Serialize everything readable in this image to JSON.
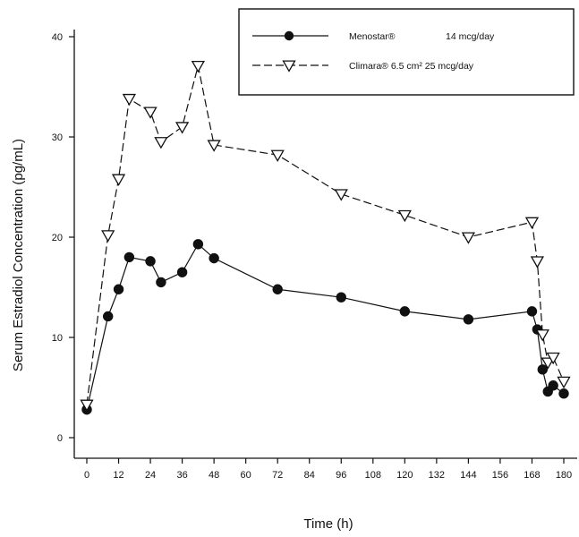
{
  "chart_data": {
    "type": "line",
    "title": "",
    "xlabel": "Time (h)",
    "ylabel": "Serum Estradiol Concentration (pg/mL)",
    "xlim": [
      0,
      180
    ],
    "ylim": [
      0,
      40
    ],
    "xticks": [
      0,
      12,
      24,
      36,
      48,
      60,
      72,
      84,
      96,
      108,
      120,
      132,
      144,
      156,
      168,
      180
    ],
    "xtick_labels": [
      "0",
      "12",
      "24",
      "36",
      "48",
      "60",
      "72",
      "84",
      "96",
      "108",
      "120",
      "132",
      "144",
      "156",
      "168",
      "180"
    ],
    "yticks": [
      0,
      10,
      20,
      30,
      40
    ],
    "ytick_labels": [
      "0",
      "10",
      "20",
      "30",
      "40"
    ],
    "grid": false,
    "legend_position": "top-right",
    "series": [
      {
        "name": "Menostar®",
        "legend_text": "Menostar®",
        "legend_dose": "14 mcg/day",
        "marker": "filled-circle",
        "line_style": "solid",
        "color": "#111111",
        "x": [
          0,
          8,
          12,
          16,
          24,
          28,
          36,
          42,
          48,
          72,
          96,
          120,
          144,
          168,
          170,
          172,
          174,
          176,
          180
        ],
        "y": [
          2.8,
          12.1,
          14.8,
          18.0,
          17.6,
          15.5,
          16.5,
          19.3,
          17.9,
          14.8,
          14.0,
          12.6,
          11.8,
          12.6,
          10.8,
          6.8,
          4.6,
          5.2,
          4.4
        ]
      },
      {
        "name": "Climara® 6.5 cm² 25 mcg/day",
        "legend_text": "Climara® 6.5 cm² 25 mcg/day",
        "legend_dose": "",
        "marker": "open-triangle-down",
        "line_style": "dashed",
        "color": "#111111",
        "x": [
          0,
          8,
          12,
          16,
          24,
          28,
          36,
          42,
          48,
          72,
          96,
          120,
          144,
          168,
          170,
          172,
          174,
          176,
          180
        ],
        "y": [
          3.3,
          20.2,
          25.8,
          33.8,
          32.5,
          29.5,
          31.0,
          37.1,
          29.2,
          28.2,
          24.3,
          22.2,
          20.0,
          21.5,
          17.6,
          10.3,
          7.5,
          8.0,
          5.6
        ]
      }
    ]
  }
}
